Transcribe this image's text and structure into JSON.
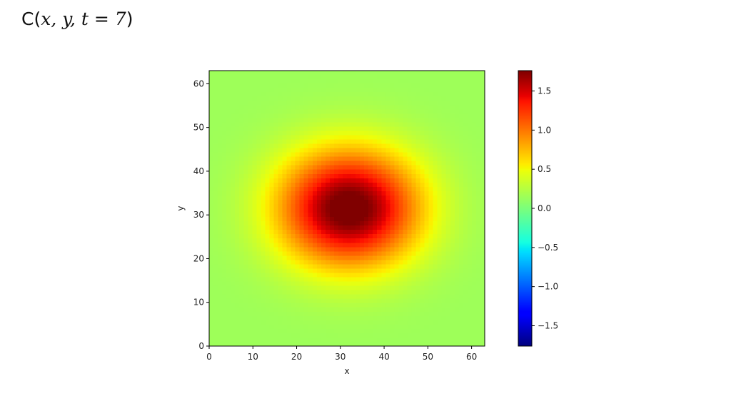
{
  "slide": {
    "title_prefix": "C(",
    "title_math": "x, y, t = 7",
    "title_suffix": ")"
  },
  "chart_data": {
    "type": "heatmap",
    "title": "",
    "xlabel": "x",
    "ylabel": "y",
    "xlim": [
      0,
      63
    ],
    "ylim": [
      0,
      63
    ],
    "grid_size": 64,
    "x_ticks": [
      0,
      10,
      20,
      30,
      40,
      50,
      60
    ],
    "y_ticks": [
      0,
      10,
      20,
      30,
      40,
      50,
      60
    ],
    "colormap": "jet",
    "grid": false,
    "field": {
      "shape": "gaussian",
      "center": [
        32,
        31.5
      ],
      "peak": 1.76,
      "sigma_x": 11.5,
      "sigma_y": 9.5,
      "background": 0.12,
      "edge_tint": 0.03
    },
    "colorbar": {
      "vmin": -1.76,
      "vmax": 1.76,
      "ticks": [
        1.5,
        1.0,
        0.5,
        0.0,
        -0.5,
        -1.0,
        -1.5
      ],
      "tick_labels": [
        "1.5",
        "1.0",
        "0.5",
        "0.0",
        "−0.5",
        "−1.0",
        "−1.5"
      ]
    }
  }
}
